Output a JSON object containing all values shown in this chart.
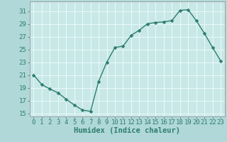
{
  "x": [
    0,
    1,
    2,
    3,
    4,
    5,
    6,
    7,
    8,
    9,
    10,
    11,
    12,
    13,
    14,
    15,
    16,
    17,
    18,
    19,
    20,
    21,
    22,
    23
  ],
  "y": [
    21,
    19.5,
    18.8,
    18.2,
    17.2,
    16.3,
    15.5,
    15.3,
    20,
    23,
    25.3,
    25.5,
    27.2,
    28.0,
    29.0,
    29.2,
    29.3,
    29.5,
    31.1,
    31.2,
    29.5,
    27.5,
    25.3,
    23.2
  ],
  "line_color": "#2e7d6e",
  "marker_color": "#2e7d6e",
  "bg_color": "#b0d8d8",
  "plot_bg_color": "#c8e8e8",
  "grid_color": "#e8f8f8",
  "axis_color": "#cc4444",
  "xlabel": "Humidex (Indice chaleur)",
  "ylabel": "",
  "ylim": [
    14.5,
    32.5
  ],
  "xlim": [
    -0.5,
    23.5
  ],
  "yticks": [
    15,
    17,
    19,
    21,
    23,
    25,
    27,
    29,
    31
  ],
  "xtick_labels": [
    "0",
    "1",
    "2",
    "3",
    "4",
    "5",
    "6",
    "7",
    "8",
    "9",
    "10",
    "11",
    "12",
    "13",
    "14",
    "15",
    "16",
    "17",
    "18",
    "19",
    "20",
    "21",
    "22",
    "23"
  ],
  "xlabel_fontsize": 7.5,
  "tick_fontsize": 6.5,
  "line_width": 1.0,
  "marker_size": 2.5
}
